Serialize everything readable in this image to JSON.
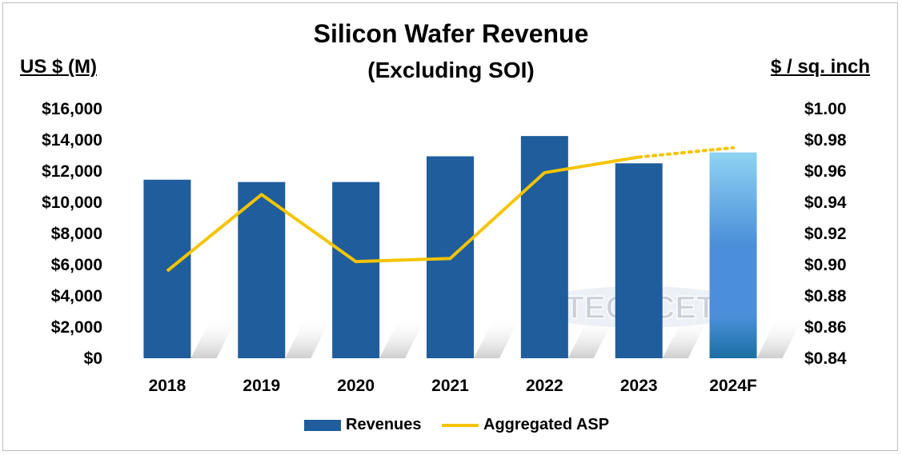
{
  "chart_data": {
    "type": "bar",
    "title": "Silicon Wafer Revenue",
    "subtitle": "(Excluding SOI)",
    "ylabel": "US $ (M)",
    "y2label": "$ / sq. inch",
    "categories": [
      "2018",
      "2019",
      "2020",
      "2021",
      "2022",
      "2023",
      "2024F"
    ],
    "ylim": [
      0,
      16000
    ],
    "y2lim": [
      0.84,
      1.0
    ],
    "yticks": [
      "$0",
      "$2,000",
      "$4,000",
      "$6,000",
      "$8,000",
      "$10,000",
      "$12,000",
      "$14,000",
      "$16,000"
    ],
    "y2ticks": [
      "$0.84",
      "$0.86",
      "$0.88",
      "$0.90",
      "$0.92",
      "$0.94",
      "$0.96",
      "$0.98",
      "$1.00"
    ],
    "series": [
      {
        "name": "Revenues",
        "type": "bar",
        "axis": "left",
        "values": [
          11450,
          11300,
          11300,
          12950,
          14250,
          12500,
          13200
        ]
      },
      {
        "name": "Aggregated ASP",
        "type": "line",
        "axis": "right",
        "values": [
          0.896,
          0.945,
          0.902,
          0.904,
          0.959,
          0.969,
          0.975
        ],
        "note_forecast_dotted_from_index": 5
      }
    ],
    "watermark": "TECHCET",
    "grid": false,
    "legend_position": "bottom"
  },
  "colors": {
    "bar": "#1f5d9c",
    "forecast_bar_top": "#8fd3f4",
    "forecast_bar_mid": "#4a8fd9",
    "forecast_bar_bottom": "#1b6fa3",
    "line": "#f5c400"
  }
}
